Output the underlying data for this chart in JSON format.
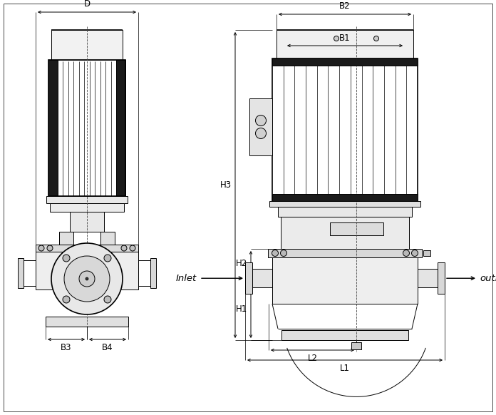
{
  "bg_color": "#ffffff",
  "lc": "#000000",
  "lw": 0.7,
  "tlw": 1.2,
  "fig_w": 6.96,
  "fig_h": 5.82,
  "dpi": 100,
  "labels": {
    "D": "D",
    "B1": "B1",
    "B2": "B2",
    "B3": "B3",
    "B4": "B4",
    "H1": "H1",
    "H2": "H2",
    "H3": "H3",
    "L1": "L1",
    "L2": "L2",
    "Inlet": "Inlet",
    "outlet": "outlet"
  },
  "fs": 8.5
}
